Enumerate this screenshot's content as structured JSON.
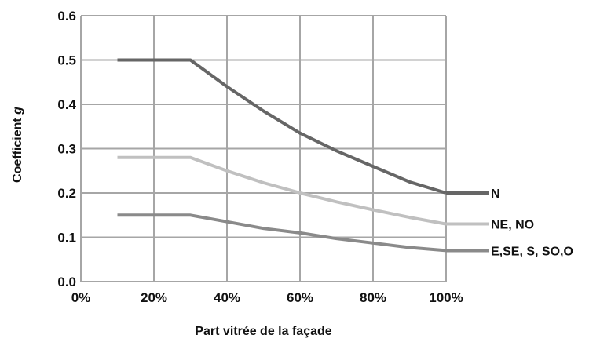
{
  "chart_data": {
    "type": "line",
    "xlabel": "Part vitrée de la façade",
    "ylabel_prefix": "Coefficient ",
    "ylabel_symbol": "g",
    "xlim": [
      0,
      100
    ],
    "ylim": [
      0,
      0.6
    ],
    "x_ticks": [
      {
        "value": 0,
        "label": "0%"
      },
      {
        "value": 20,
        "label": "20%"
      },
      {
        "value": 40,
        "label": "40%"
      },
      {
        "value": 60,
        "label": "60%"
      },
      {
        "value": 80,
        "label": "80%"
      },
      {
        "value": 100,
        "label": "100%"
      }
    ],
    "y_ticks": [
      {
        "value": 0,
        "label": "0.0"
      },
      {
        "value": 0.1,
        "label": "0.1"
      },
      {
        "value": 0.2,
        "label": "0.2"
      },
      {
        "value": 0.3,
        "label": "0.3"
      },
      {
        "value": 0.4,
        "label": "0.4"
      },
      {
        "value": 0.5,
        "label": "0.5"
      },
      {
        "value": 0.6,
        "label": "0.6"
      }
    ],
    "grid": true,
    "legend_position": "right",
    "series": [
      {
        "name": "N",
        "color": "#666666",
        "points": [
          [
            10,
            0.5
          ],
          [
            30,
            0.5
          ],
          [
            40,
            0.44
          ],
          [
            50,
            0.385
          ],
          [
            60,
            0.335
          ],
          [
            70,
            0.295
          ],
          [
            80,
            0.26
          ],
          [
            90,
            0.225
          ],
          [
            100,
            0.2
          ]
        ]
      },
      {
        "name": "NE, NO",
        "color": "#c0c0c0",
        "points": [
          [
            10,
            0.28
          ],
          [
            30,
            0.28
          ],
          [
            40,
            0.25
          ],
          [
            50,
            0.223
          ],
          [
            60,
            0.2
          ],
          [
            70,
            0.18
          ],
          [
            80,
            0.162
          ],
          [
            90,
            0.145
          ],
          [
            100,
            0.13
          ]
        ]
      },
      {
        "name": "E,SE, S, SO,O",
        "color": "#8a8a8a",
        "points": [
          [
            10,
            0.15
          ],
          [
            30,
            0.15
          ],
          [
            40,
            0.135
          ],
          [
            50,
            0.12
          ],
          [
            60,
            0.11
          ],
          [
            70,
            0.097
          ],
          [
            80,
            0.087
          ],
          [
            90,
            0.077
          ],
          [
            100,
            0.07
          ]
        ]
      }
    ]
  }
}
